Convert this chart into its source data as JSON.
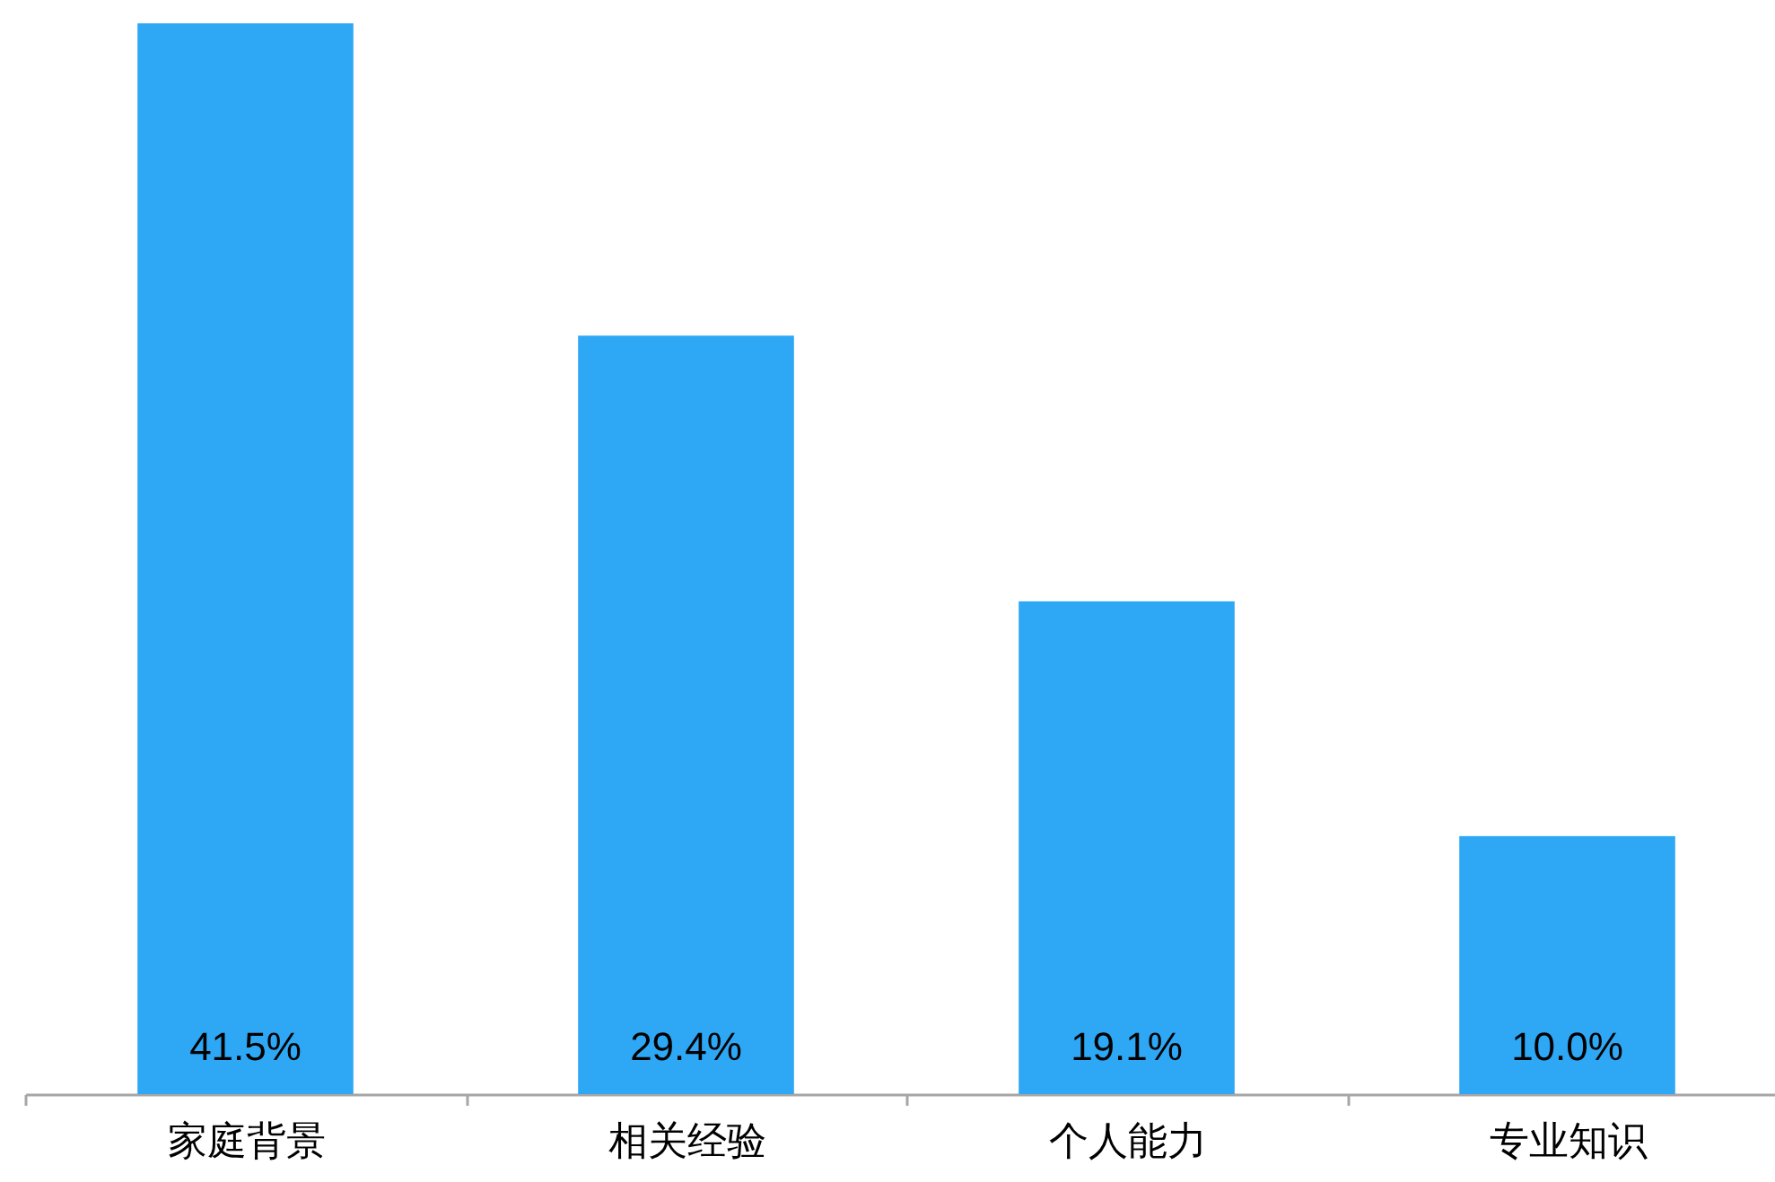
{
  "chart_data": {
    "type": "bar",
    "categories": [
      "家庭背景",
      "相关经验",
      "个人能力",
      "专业知识"
    ],
    "values": [
      41.5,
      29.4,
      19.1,
      10.0
    ],
    "value_labels": [
      "41.5%",
      "29.4%",
      "19.1%",
      "10.0%"
    ],
    "color": "#2ea7f5",
    "tick_labels": "x"
  }
}
